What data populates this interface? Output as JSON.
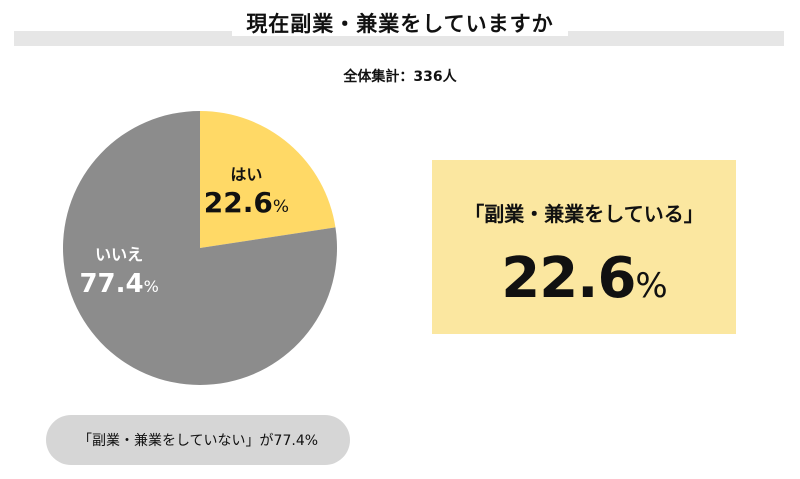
{
  "header": {
    "title": "現在副業・兼業をしていますか",
    "total": "全体集計：336人"
  },
  "chart_data": {
    "type": "pie",
    "title": "現在副業・兼業をしていますか",
    "slices": [
      {
        "label": "はい",
        "value": 22.6,
        "display": "22.6",
        "unit": "%",
        "color": "#ffd966"
      },
      {
        "label": "いいえ",
        "value": 77.4,
        "display": "77.4",
        "unit": "%",
        "color": "#8c8c8c"
      }
    ]
  },
  "highlight": {
    "caption": "「副業・兼業をしている」",
    "value": "22.6",
    "unit": "%"
  },
  "footer_note": "「副業・兼業をしていない」が77.4%",
  "colors": {
    "accent": "#ffd966",
    "gray": "#8c8c8c",
    "highlight_bg": "#fbe7a0",
    "pill_bg": "#d6d6d6"
  }
}
